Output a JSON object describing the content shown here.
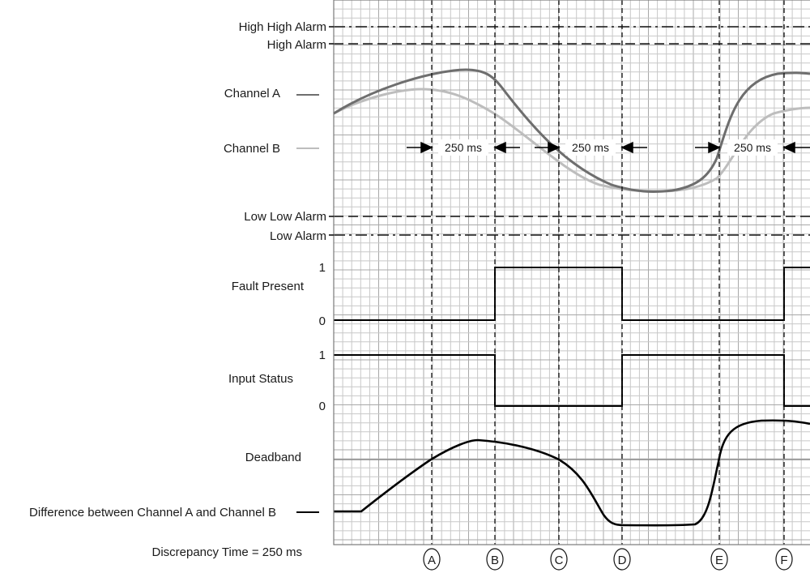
{
  "labels": {
    "high_high_alarm": "High High Alarm",
    "high_alarm": "High Alarm",
    "channel_a": "Channel A",
    "channel_b": "Channel B",
    "low_low_alarm": "Low Low Alarm",
    "low_alarm": "Low Alarm",
    "fault_present": "Fault Present",
    "input_status": "Input Status",
    "deadband": "Deadband",
    "difference": "Difference between Channel A and Channel B",
    "discrepancy_time": "Discrepancy Time = 250 ms"
  },
  "levels": {
    "fault_one": "1",
    "fault_zero": "0",
    "input_one": "1",
    "input_zero": "0"
  },
  "intervals": [
    "250 ms",
    "250 ms",
    "250 ms"
  ],
  "markers": [
    "A",
    "B",
    "C",
    "D",
    "E",
    "F"
  ],
  "colors": {
    "channel_a": "#6e6e6e",
    "channel_b": "#bdbdbd",
    "signal": "#000000",
    "grid": "#c8c8c8"
  }
}
